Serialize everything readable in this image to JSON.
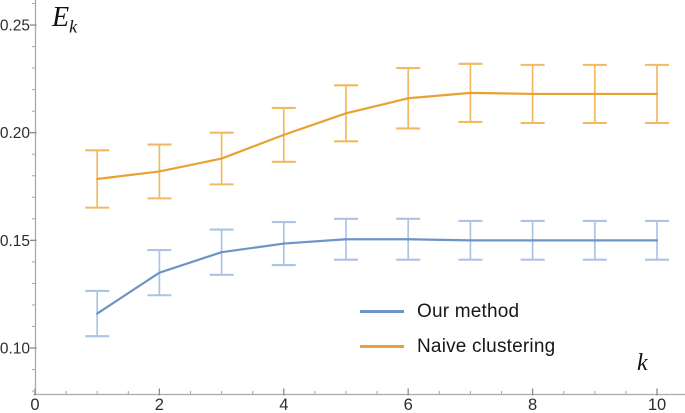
{
  "figure": {
    "y_axis_title_main": "E",
    "y_axis_title_sub": "k",
    "x_axis_title": "k"
  },
  "colors": {
    "axis": "#ababab",
    "tick_label": "#2d2d2d",
    "our_method_line": "#6e93c6",
    "our_method_error": "#abc4e3",
    "naive_clustering_line": "#e8a234",
    "naive_clustering_error": "#f1ba62"
  },
  "chart_data": {
    "type": "line",
    "title": "",
    "xlabel": "k",
    "ylabel": "E_k",
    "grid": false,
    "error_bars": true,
    "legend_position": "inside-lower-right",
    "xlim": [
      0,
      10.45
    ],
    "ylim": [
      0.078,
      0.262
    ],
    "x_ticks": [
      0,
      2,
      4,
      6,
      8,
      10
    ],
    "x_tick_labels": [
      "0",
      "2",
      "4",
      "6",
      "8",
      "10"
    ],
    "x_minor_step": 0.5,
    "y_ticks": [
      0.1,
      0.15,
      0.2,
      0.25
    ],
    "y_tick_labels": [
      "0.10",
      "0.15",
      "0.20",
      "0.25"
    ],
    "y_minor_step": 0.01,
    "x": [
      1,
      2,
      3,
      4,
      5,
      6,
      7,
      8,
      9,
      10
    ],
    "series": [
      {
        "name": "Our method",
        "values": [
          0.116,
          0.135,
          0.1445,
          0.1485,
          0.1505,
          0.1505,
          0.15,
          0.15,
          0.15,
          0.15
        ],
        "errors": [
          0.0105,
          0.0105,
          0.0105,
          0.01,
          0.0095,
          0.0095,
          0.009,
          0.009,
          0.009,
          0.009
        ],
        "line_color": "#6e93c6",
        "error_color": "#abc4e3"
      },
      {
        "name": "Naive clustering",
        "values": [
          0.1785,
          0.182,
          0.188,
          0.199,
          0.209,
          0.216,
          0.2185,
          0.218,
          0.218,
          0.218
        ],
        "errors": [
          0.0133,
          0.0125,
          0.012,
          0.0125,
          0.013,
          0.014,
          0.0135,
          0.0135,
          0.0135,
          0.0135
        ],
        "line_color": "#e8a234",
        "error_color": "#f1ba62"
      }
    ]
  }
}
